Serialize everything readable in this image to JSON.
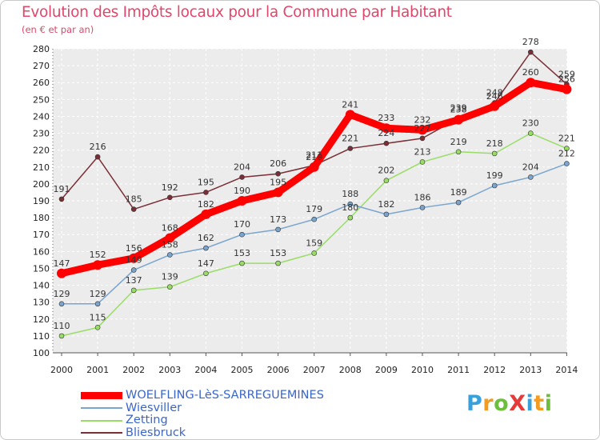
{
  "chart_data": {
    "type": "line",
    "title": "Evolution des Impôts locaux pour la Commune par Habitant",
    "subtitle": "(en € et par an)",
    "xlabel": "",
    "ylabel": "",
    "categories": [
      "2000",
      "2001",
      "2002",
      "2003",
      "2004",
      "2005",
      "2006",
      "2007",
      "2008",
      "2009",
      "2010",
      "2011",
      "2012",
      "2013",
      "2014"
    ],
    "ylim": [
      100,
      280
    ],
    "yticks": [
      "100",
      "110",
      "120",
      "130",
      "140",
      "150",
      "160",
      "170",
      "180",
      "190",
      "200",
      "210",
      "220",
      "230",
      "240",
      "250",
      "260",
      "270",
      "280"
    ],
    "grid": true,
    "series": [
      {
        "name": "Bliesbruck",
        "color": "#7a2f36",
        "values": [
          191,
          216,
          185,
          192,
          195,
          204,
          206,
          211,
          221,
          224,
          227,
          239,
          248,
          278,
          259
        ],
        "labels": [
          "191",
          "216",
          "185",
          "192",
          "195",
          "204",
          "206",
          "211",
          "221",
          "224",
          "227",
          "239",
          "248",
          "278",
          "259"
        ]
      },
      {
        "name": "Zetting",
        "color": "#99dd66",
        "values": [
          110,
          115,
          137,
          139,
          147,
          153,
          153,
          159,
          180,
          202,
          213,
          219,
          218,
          230,
          221
        ],
        "labels": [
          "110",
          "115",
          "137",
          "139",
          "147",
          "153",
          "153",
          "159",
          "180",
          "202",
          "213",
          "219",
          "218",
          "230",
          "221"
        ]
      },
      {
        "name": "Wiesviller",
        "color": "#7aa5cf",
        "values": [
          129,
          129,
          149,
          158,
          162,
          170,
          173,
          179,
          188,
          182,
          186,
          189,
          199,
          204,
          212
        ],
        "labels": [
          "129",
          "129",
          "149",
          "158",
          "162",
          "170",
          "173",
          "179",
          "188",
          "182",
          "186",
          "189",
          "199",
          "204",
          "212"
        ]
      },
      {
        "name": "WOELFLING-LèS-SARREGUEMINES",
        "color": "#ff0000",
        "values": [
          147,
          152,
          156,
          168,
          182,
          190,
          195,
          210,
          241,
          233,
          232,
          238,
          246,
          260,
          256
        ],
        "labels": [
          "147",
          "152",
          "156",
          "168",
          "182",
          "190",
          "195",
          "210",
          "241",
          "233",
          "232",
          "238",
          "246",
          "260",
          "256"
        ]
      }
    ],
    "legend_order": [
      "WOELFLING-LèS-SARREGUEMINES",
      "Wiesviller",
      "Zetting",
      "Bliesbruck"
    ],
    "legend_position": "bottom-left"
  },
  "logo": {
    "text": "ProXiti"
  }
}
